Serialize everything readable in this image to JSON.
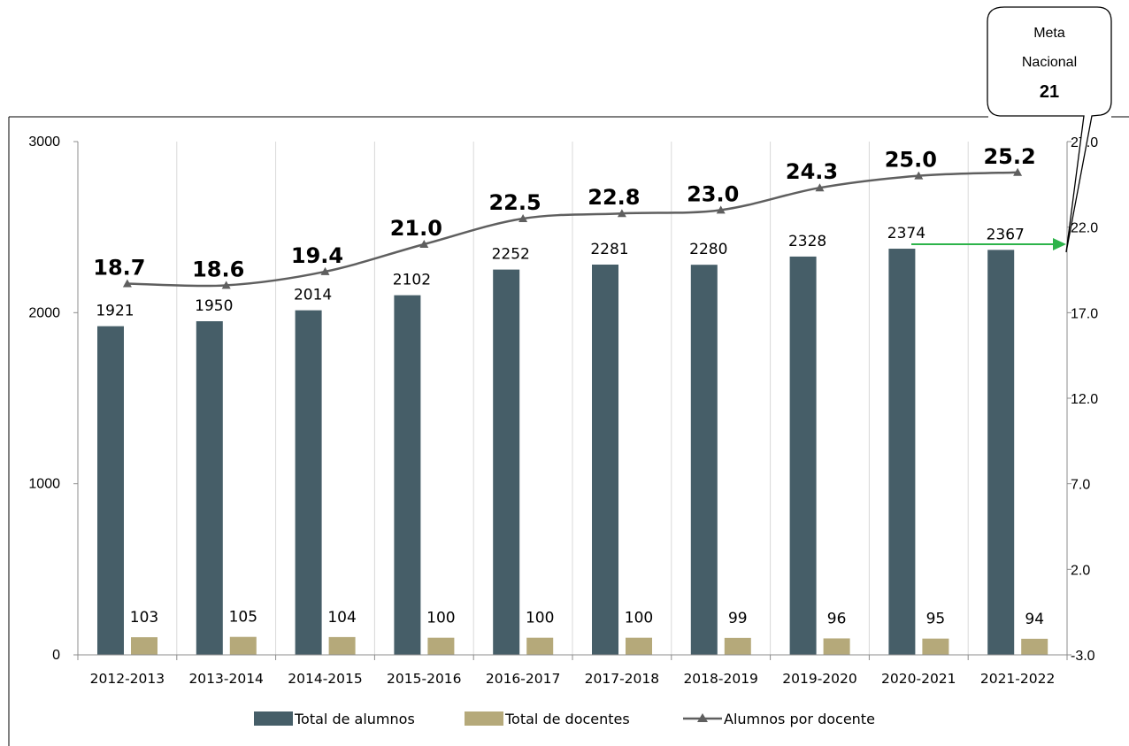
{
  "chart_data": {
    "type": "bar",
    "categories": [
      "2012-2013",
      "2013-2014",
      "2014-2015",
      "2015-2016",
      "2016-2017",
      "2017-2018",
      "2018-2019",
      "2019-2020",
      "2020-2021",
      "2021-2022"
    ],
    "series": [
      {
        "name": "Total de alumnos",
        "type": "bar",
        "axis": "left",
        "color": "#465E68",
        "values": [
          1921,
          1950,
          2014,
          2102,
          2252,
          2281,
          2280,
          2328,
          2374,
          2367
        ]
      },
      {
        "name": "Total de docentes",
        "type": "bar",
        "axis": "left",
        "color": "#B5A97A",
        "values": [
          103,
          105,
          104,
          100,
          100,
          100,
          99,
          96,
          95,
          94
        ]
      },
      {
        "name": "Alumnos por docente",
        "type": "line",
        "axis": "right",
        "color": "#5F5F5F",
        "marker": "triangle",
        "values": [
          18.7,
          18.6,
          19.4,
          21.0,
          22.5,
          22.8,
          23.0,
          24.3,
          25.0,
          25.2
        ]
      }
    ],
    "y_left": {
      "min": 0,
      "max": 3000,
      "ticks": [
        "0",
        "1000",
        "2000",
        "3000"
      ]
    },
    "y_right": {
      "min": -3,
      "max": 27,
      "ticks": [
        "-3.0",
        "2.0",
        "7.0",
        "12.0",
        "17.0",
        "22.0",
        "27.0"
      ]
    },
    "grid": "vertical separators between categories",
    "legend_position": "bottom",
    "annotation": {
      "line1": "Meta",
      "line2": "Nacional",
      "value": "21",
      "target": 21,
      "arrow_color": "#2DB34A"
    }
  }
}
